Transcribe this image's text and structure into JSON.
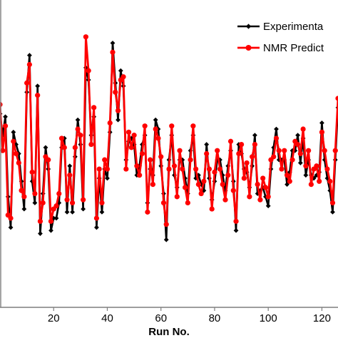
{
  "chart_data": {
    "type": "line",
    "title": "",
    "xlabel": "Run No.",
    "ylabel": "",
    "xlim": [
      0,
      126
    ],
    "ylim": [
      0,
      1
    ],
    "xticks": [
      20,
      40,
      60,
      80,
      100,
      120
    ],
    "xtick_labels": [
      "20",
      "40",
      "60",
      "80",
      "100",
      "120"
    ],
    "grid": false,
    "legend_position": "top-right",
    "x": [
      0,
      1,
      2,
      3,
      4,
      5,
      6,
      7,
      8,
      9,
      10,
      11,
      12,
      13,
      14,
      15,
      16,
      17,
      18,
      19,
      20,
      21,
      22,
      23,
      24,
      25,
      26,
      27,
      28,
      29,
      30,
      31,
      32,
      33,
      34,
      35,
      36,
      37,
      38,
      39,
      40,
      41,
      42,
      43,
      44,
      45,
      46,
      47,
      48,
      49,
      50,
      51,
      52,
      53,
      54,
      55,
      56,
      57,
      58,
      59,
      60,
      61,
      62,
      63,
      64,
      65,
      66,
      67,
      68,
      69,
      70,
      71,
      72,
      73,
      74,
      75,
      76,
      77,
      78,
      79,
      80,
      81,
      82,
      83,
      84,
      85,
      86,
      87,
      88,
      89,
      90,
      91,
      92,
      93,
      94,
      95,
      96,
      97,
      98,
      99,
      100,
      101,
      102,
      103,
      104,
      105,
      106,
      107,
      108,
      109,
      110,
      111,
      112,
      113,
      114,
      115,
      116,
      117,
      118,
      119,
      120,
      121,
      122,
      123,
      124,
      125,
      126
    ],
    "series": [
      {
        "name": "Experimenta",
        "color": "#000000",
        "marker": "diamond",
        "values": [
          0.63,
          0.56,
          0.62,
          0.36,
          0.26,
          0.57,
          0.53,
          0.5,
          0.41,
          0.32,
          0.7,
          0.82,
          0.41,
          0.34,
          0.72,
          0.24,
          0.37,
          0.52,
          0.45,
          0.25,
          0.29,
          0.29,
          0.34,
          0.52,
          0.55,
          0.31,
          0.46,
          0.31,
          0.49,
          0.61,
          0.53,
          0.32,
          0.78,
          0.74,
          0.56,
          0.62,
          0.26,
          0.42,
          0.31,
          0.45,
          0.42,
          0.57,
          0.86,
          0.73,
          0.61,
          0.77,
          0.72,
          0.48,
          0.54,
          0.55,
          0.53,
          0.43,
          0.46,
          0.53,
          0.56,
          0.34,
          0.45,
          0.43,
          0.61,
          0.58,
          0.46,
          0.37,
          0.22,
          0.48,
          0.56,
          0.43,
          0.39,
          0.48,
          0.48,
          0.42,
          0.37,
          0.51,
          0.56,
          0.42,
          0.43,
          0.4,
          0.38,
          0.53,
          0.42,
          0.35,
          0.41,
          0.48,
          0.48,
          0.43,
          0.38,
          0.46,
          0.51,
          0.41,
          0.25,
          0.53,
          0.5,
          0.45,
          0.44,
          0.39,
          0.46,
          0.56,
          0.37,
          0.38,
          0.39,
          0.36,
          0.33,
          0.45,
          0.52,
          0.58,
          0.48,
          0.48,
          0.48,
          0.4,
          0.44,
          0.51,
          0.51,
          0.56,
          0.47,
          0.55,
          0.43,
          0.48,
          0.43,
          0.42,
          0.43,
          0.44,
          0.6,
          0.48,
          0.42,
          0.38,
          0.31,
          0.48,
          0.65
        ]
      },
      {
        "name": "NMR Predict",
        "color": "#ff0000",
        "marker": "circle",
        "values": [
          0.66,
          0.51,
          0.59,
          0.3,
          0.29,
          0.54,
          0.5,
          0.47,
          0.38,
          0.36,
          0.73,
          0.79,
          0.44,
          0.37,
          0.69,
          0.28,
          0.34,
          0.49,
          0.48,
          0.28,
          0.32,
          0.33,
          0.37,
          0.55,
          0.52,
          0.35,
          0.43,
          0.34,
          0.52,
          0.58,
          0.56,
          0.35,
          0.88,
          0.77,
          0.53,
          0.65,
          0.29,
          0.45,
          0.34,
          0.48,
          0.45,
          0.6,
          0.83,
          0.7,
          0.64,
          0.74,
          0.75,
          0.45,
          0.57,
          0.52,
          0.56,
          0.46,
          0.43,
          0.5,
          0.59,
          0.31,
          0.48,
          0.4,
          0.58,
          0.55,
          0.49,
          0.34,
          0.27,
          0.45,
          0.59,
          0.46,
          0.36,
          0.51,
          0.45,
          0.39,
          0.34,
          0.48,
          0.59,
          0.45,
          0.4,
          0.37,
          0.41,
          0.5,
          0.45,
          0.32,
          0.44,
          0.51,
          0.45,
          0.4,
          0.35,
          0.43,
          0.54,
          0.38,
          0.28,
          0.5,
          0.53,
          0.42,
          0.47,
          0.36,
          0.49,
          0.53,
          0.4,
          0.35,
          0.42,
          0.39,
          0.36,
          0.48,
          0.49,
          0.55,
          0.51,
          0.45,
          0.51,
          0.43,
          0.41,
          0.48,
          0.54,
          0.53,
          0.5,
          0.58,
          0.46,
          0.51,
          0.4,
          0.45,
          0.46,
          0.41,
          0.57,
          0.51,
          0.45,
          0.41,
          0.34,
          0.51,
          0.68
        ]
      }
    ]
  }
}
